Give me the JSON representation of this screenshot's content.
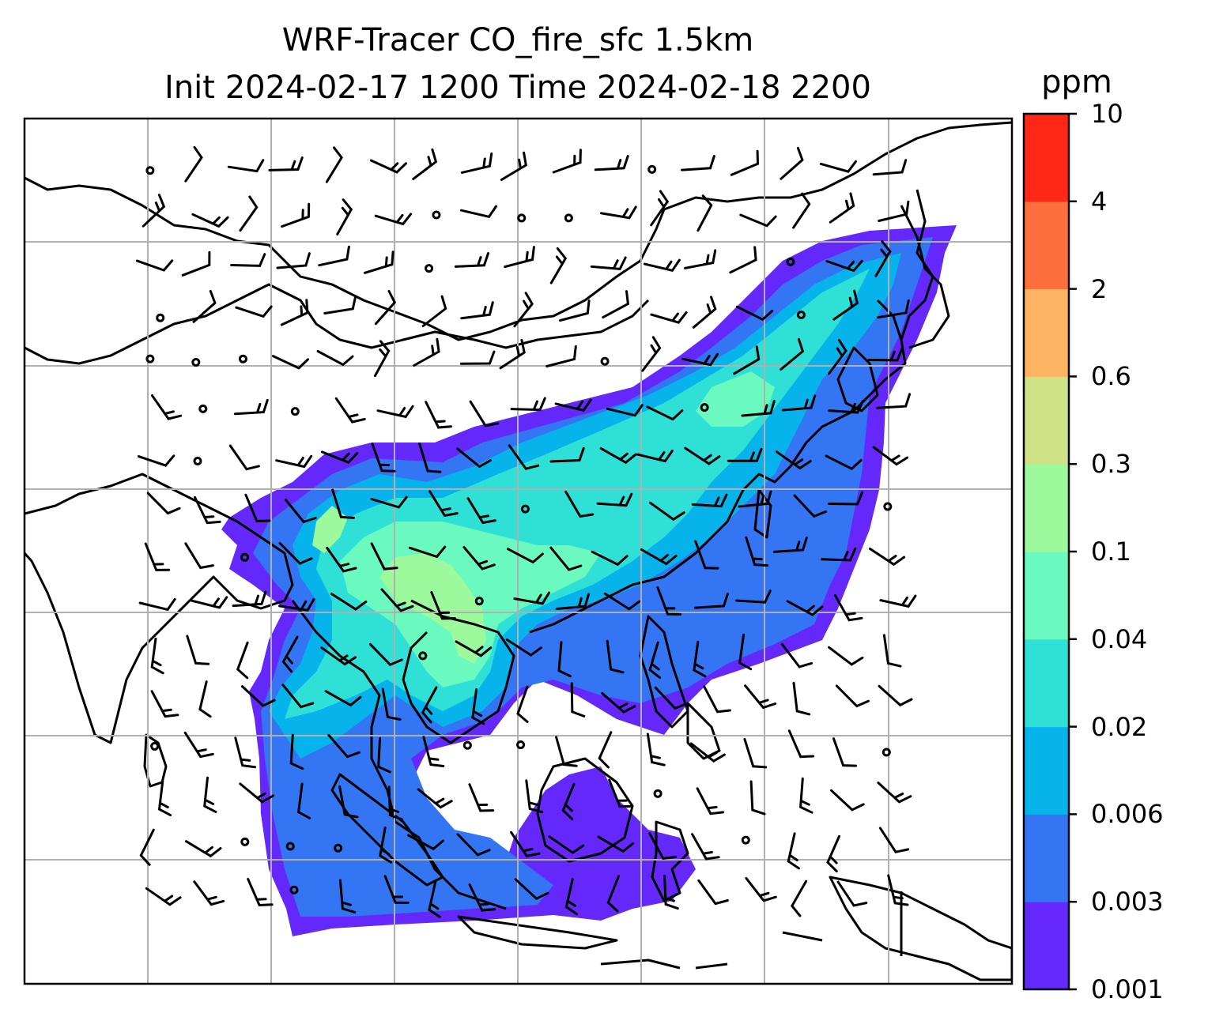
{
  "title_line1": "WRF-Tracer CO_fire_sfc 1.5km",
  "title_line2": "Init 2024-02-17 1200 Time 2024-02-18 2200",
  "colorbar": {
    "unit": "ppm",
    "levels": [
      "0.001",
      "0.003",
      "0.006",
      "0.02",
      "0.04",
      "0.1",
      "0.3",
      "0.6",
      "2",
      "4",
      "10"
    ],
    "colors": [
      "#6429fa",
      "#3375f2",
      "#06b3eb",
      "#2ee0d5",
      "#6afac0",
      "#9cfa9c",
      "#cfe286",
      "#fdb462",
      "#fd6f3c",
      "#ff2816"
    ]
  },
  "map": {
    "gridline_color": "#b0b0b0",
    "coastline_color": "#000000",
    "barb_color": "#000000"
  }
}
